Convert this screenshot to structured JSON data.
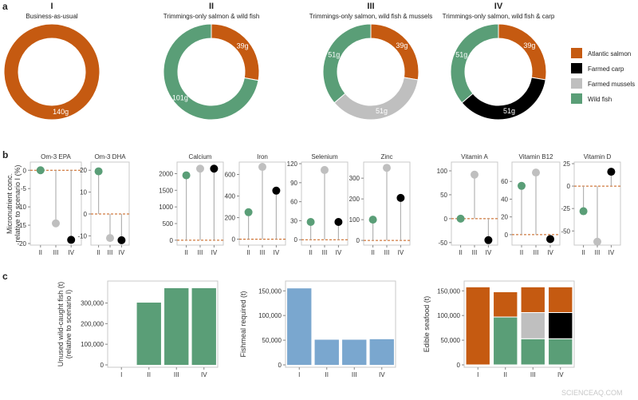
{
  "panel_labels": {
    "a": "a",
    "b": "b",
    "c": "c"
  },
  "watermark": "SCIENCEAQ.COM",
  "colors": {
    "Atlantic salmon": "#c55a11",
    "Farmed carp": "#000000",
    "Farmed mussels": "#bfbfbf",
    "Wild fish": "#5a9e77",
    "fishmeal": "#7aa7cf",
    "reference_line": "#c55a11",
    "stem": "#b3b3b3"
  },
  "chart_data": [
    {
      "id": "a",
      "type": "pie",
      "subtype": "donut",
      "charts": [
        {
          "numeral": "I",
          "title": "Business-as-usual",
          "slices": [
            {
              "name": "Atlantic salmon",
              "value": 140,
              "label": "140g"
            }
          ]
        },
        {
          "numeral": "II",
          "title": "Trimmings-only salmon & wild fish",
          "slices": [
            {
              "name": "Atlantic salmon",
              "value": 39,
              "label": "39g"
            },
            {
              "name": "Wild fish",
              "value": 101,
              "label": "101g"
            }
          ]
        },
        {
          "numeral": "III",
          "title": "Trimmings-only salmon, wild fish & mussels",
          "slices": [
            {
              "name": "Atlantic salmon",
              "value": 39,
              "label": "39g"
            },
            {
              "name": "Farmed mussels",
              "value": 51,
              "label": "51g"
            },
            {
              "name": "Wild fish",
              "value": 51,
              "label": "51g"
            }
          ]
        },
        {
          "numeral": "IV",
          "title": "Trimmings-only salmon, wild fish & carp",
          "slices": [
            {
              "name": "Atlantic salmon",
              "value": 39,
              "label": "39g"
            },
            {
              "name": "Farmed carp",
              "value": 51,
              "label": "51g"
            },
            {
              "name": "Wild fish",
              "value": 51,
              "label": "51g"
            }
          ]
        }
      ],
      "legend": [
        "Atlantic salmon",
        "Farmed carp",
        "Farmed mussels",
        "Wild fish"
      ]
    },
    {
      "id": "b",
      "type": "scatter",
      "subtype": "lollipop",
      "ylabel": "Micronutrient conc.\nrelative to scenario I (%)",
      "categories": [
        "II",
        "III",
        "IV"
      ],
      "point_colors": [
        "Wild fish",
        "Farmed mussels",
        "Farmed carp"
      ],
      "panels": [
        {
          "title": "Om-3 EPA",
          "values": [
            0,
            -14.5,
            -19
          ],
          "ylim": [
            -20,
            1.8
          ],
          "ticks": [
            0,
            -5,
            -10,
            -15,
            -20
          ]
        },
        {
          "title": "Om-3 DHA",
          "values": [
            19.5,
            -11,
            -12
          ],
          "ylim": [
            -13.5,
            23
          ],
          "ticks": [
            20,
            10,
            0,
            -10
          ]
        },
        {
          "title": "Calcium",
          "values": [
            1950,
            2150,
            2150
          ],
          "ylim": [
            -100,
            2300
          ],
          "ticks": [
            2000,
            1500,
            1000,
            500,
            0
          ]
        },
        {
          "title": "Iron",
          "values": [
            250,
            670,
            450
          ],
          "ylim": [
            -40,
            700
          ],
          "ticks": [
            600,
            400,
            200,
            0
          ]
        },
        {
          "title": "Selenium",
          "values": [
            28,
            110,
            28
          ],
          "ylim": [
            -6,
            120
          ],
          "ticks": [
            120,
            90,
            60,
            30,
            0
          ]
        },
        {
          "title": "Zinc",
          "values": [
            100,
            350,
            205
          ],
          "ylim": [
            -15,
            370
          ],
          "ticks": [
            300,
            200,
            100,
            0
          ]
        },
        {
          "title": "Vitamin A",
          "values": [
            0,
            92,
            -45
          ],
          "ylim": [
            -52,
            115
          ],
          "ticks": [
            100,
            50,
            0,
            -50
          ]
        },
        {
          "title": "Vitamin B12",
          "values": [
            55,
            70,
            -5
          ],
          "ylim": [
            -10,
            80
          ],
          "ticks": [
            60,
            40,
            20,
            0
          ]
        },
        {
          "title": "Vitamin D",
          "values": [
            -28,
            -62,
            16
          ],
          "ylim": [
            -64,
            25
          ],
          "ticks": [
            25,
            0,
            -25,
            -50
          ]
        }
      ]
    },
    {
      "id": "c1",
      "type": "bar",
      "ylabel": "Unused wild-caught fish (t)\n(relative to scenario I)",
      "categories": [
        "I",
        "II",
        "III",
        "IV"
      ],
      "values": [
        0,
        302000,
        372000,
        372000
      ],
      "ylim": [
        0,
        395000
      ],
      "ticks": [
        0,
        100000,
        200000,
        300000
      ],
      "tick_labels": [
        "0",
        "100,000",
        "200,000",
        "300,000"
      ],
      "color": "Wild fish"
    },
    {
      "id": "c2",
      "type": "bar",
      "ylabel": "Fishmeal required (t)",
      "categories": [
        "I",
        "II",
        "III",
        "IV"
      ],
      "values": [
        155000,
        51000,
        51000,
        52000
      ],
      "ylim": [
        0,
        165000
      ],
      "ticks": [
        0,
        50000,
        100000,
        150000
      ],
      "tick_labels": [
        "0",
        "50,000",
        "100,000",
        "150,000"
      ],
      "color": "fishmeal"
    },
    {
      "id": "c3",
      "type": "bar",
      "subtype": "stacked",
      "ylabel": "Edible seafood (t)",
      "categories": [
        "I",
        "II",
        "III",
        "IV"
      ],
      "series": [
        {
          "name": "Wild fish",
          "values": [
            0,
            97000,
            53000,
            53000
          ]
        },
        {
          "name": "Farmed mussels",
          "values": [
            0,
            0,
            53000,
            0
          ]
        },
        {
          "name": "Farmed carp",
          "values": [
            0,
            0,
            0,
            53000
          ]
        },
        {
          "name": "Atlantic salmon",
          "values": [
            158000,
            51000,
            52000,
            52000
          ]
        }
      ],
      "ylim": [
        0,
        165000
      ],
      "ticks": [
        0,
        50000,
        100000,
        150000
      ],
      "tick_labels": [
        "0",
        "50,000",
        "100,000",
        "150,000"
      ]
    }
  ]
}
